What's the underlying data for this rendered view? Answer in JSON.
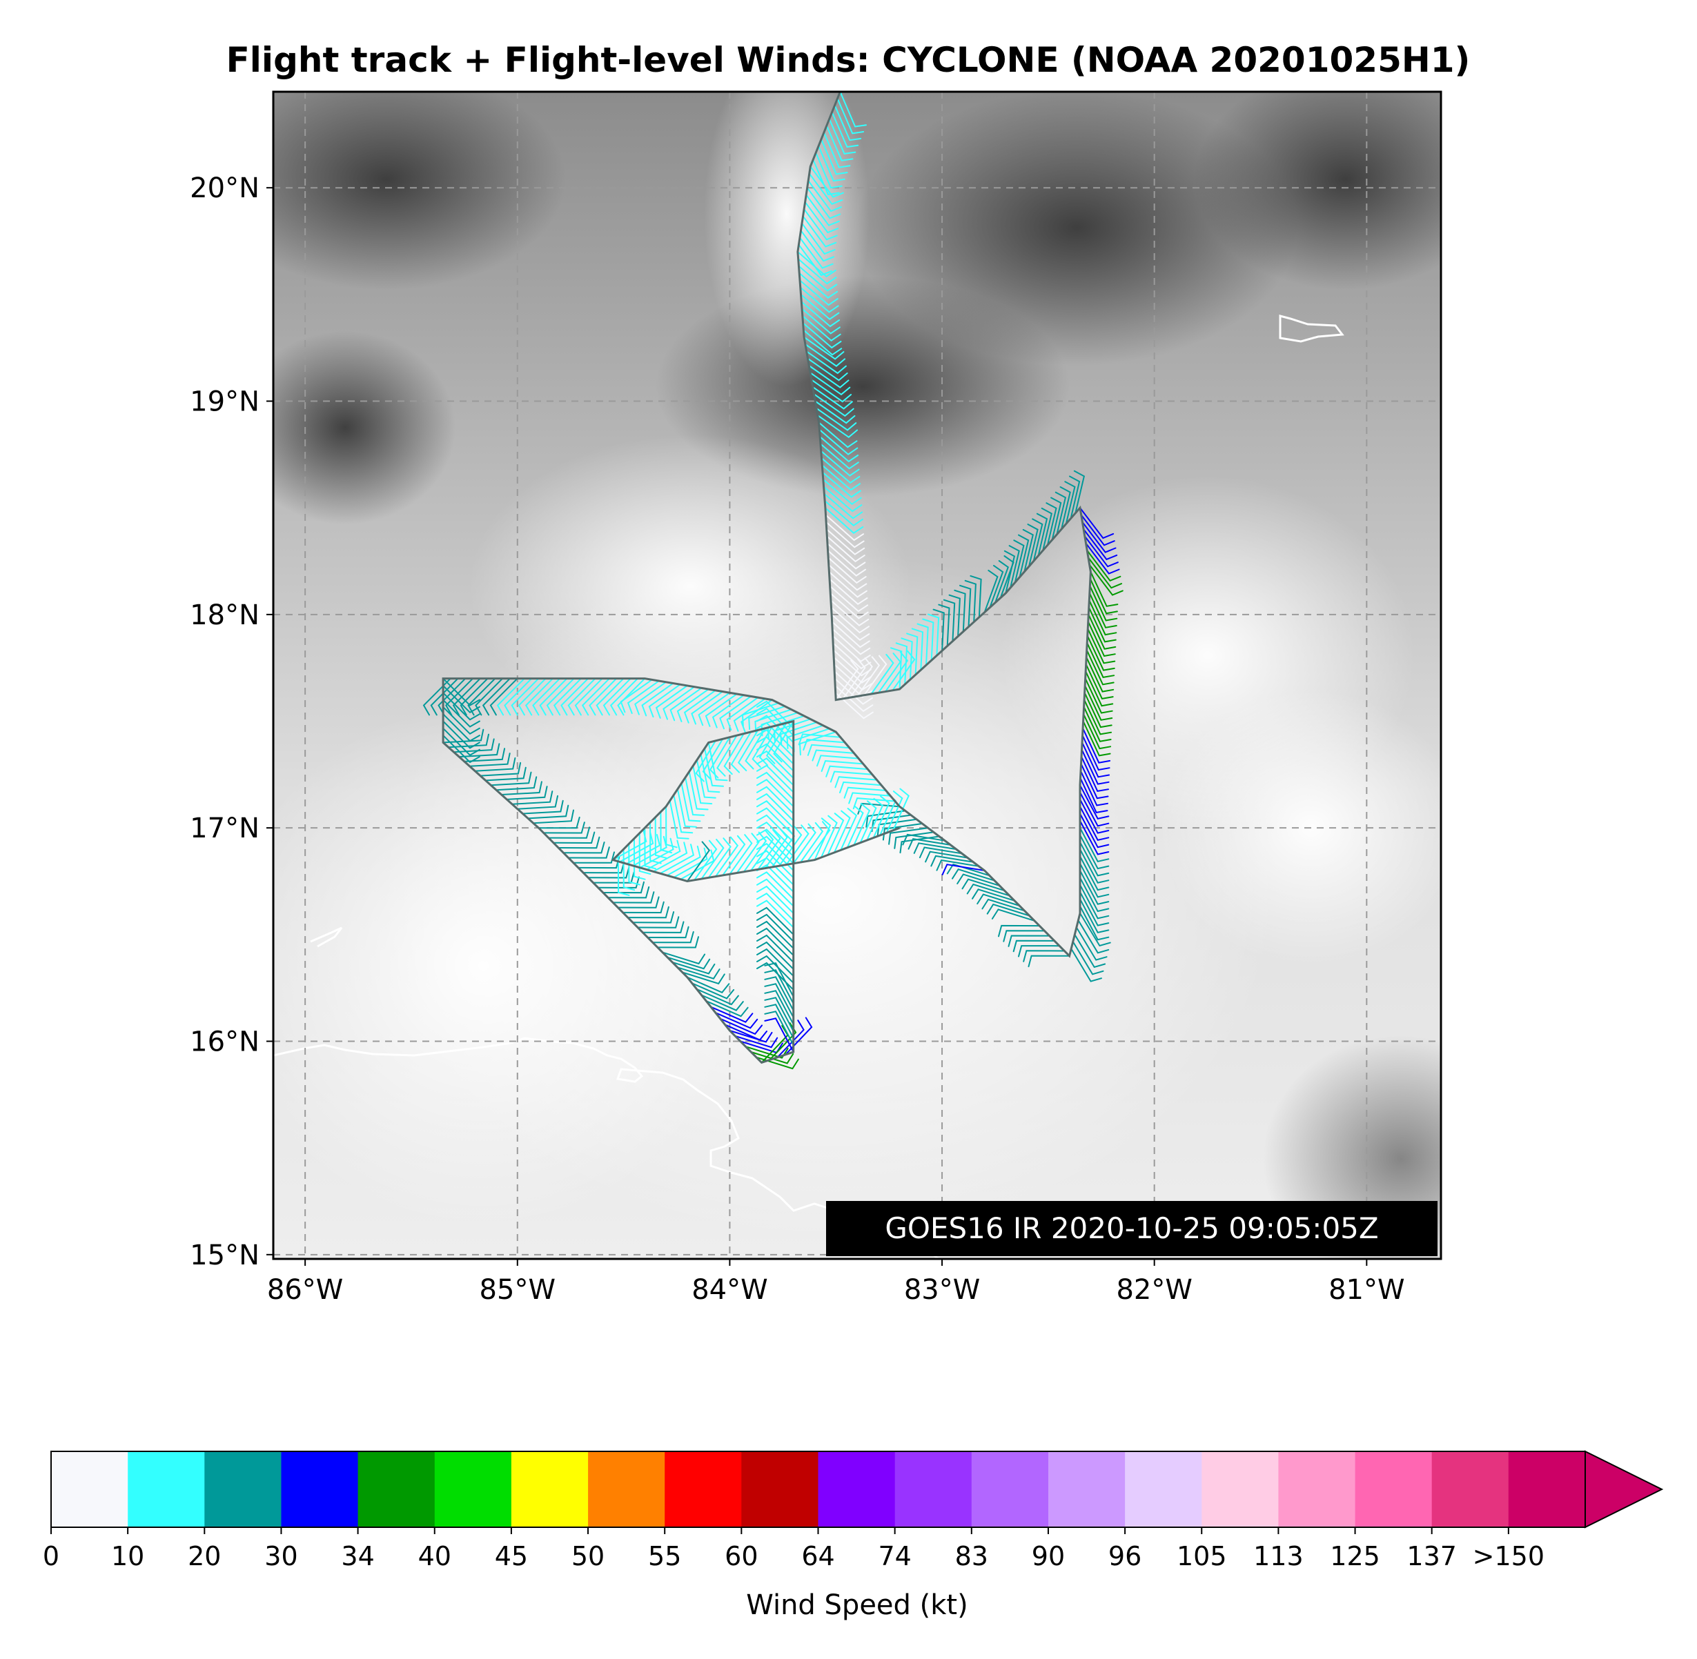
{
  "title": "Flight track + Flight-level Winds: CYCLONE (NOAA 20201025H1)",
  "map": {
    "lon_range": [
      -86.15,
      -80.65
    ],
    "lat_range": [
      14.98,
      20.45
    ],
    "lat_ticks": [
      {
        "value": 20,
        "label": "20°N"
      },
      {
        "value": 19,
        "label": "19°N"
      },
      {
        "value": 18,
        "label": "18°N"
      },
      {
        "value": 17,
        "label": "17°N"
      },
      {
        "value": 16,
        "label": "16°N"
      },
      {
        "value": 15,
        "label": "15°N"
      }
    ],
    "lon_ticks": [
      {
        "value": -86,
        "label": "86°W"
      },
      {
        "value": -85,
        "label": "85°W"
      },
      {
        "value": -84,
        "label": "84°W"
      },
      {
        "value": -83,
        "label": "83°W"
      },
      {
        "value": -82,
        "label": "82°W"
      },
      {
        "value": -81,
        "label": "81°W"
      }
    ],
    "gridlines": true,
    "background": "grayscale infrared satellite imagery",
    "satellite_stamp": "GOES16 IR 2020-10-25 09:05:05Z",
    "track_color": "#556b6b",
    "coastline_color": "#ffffff"
  },
  "flight_track": [
    {
      "lon": -83.48,
      "lat": 20.45,
      "kt": 15
    },
    {
      "lon": -83.62,
      "lat": 20.1,
      "kt": 15
    },
    {
      "lon": -83.68,
      "lat": 19.7,
      "kt": 10
    },
    {
      "lon": -83.65,
      "lat": 19.3,
      "kt": 15
    },
    {
      "lon": -83.58,
      "lat": 18.9,
      "kt": 15
    },
    {
      "lon": -83.55,
      "lat": 18.5,
      "kt": 10
    },
    {
      "lon": -83.52,
      "lat": 18.0,
      "kt": 8
    },
    {
      "lon": -83.5,
      "lat": 17.6,
      "kt": 5
    },
    {
      "lon": -83.2,
      "lat": 17.65,
      "kt": 15
    },
    {
      "lon": -82.7,
      "lat": 18.1,
      "kt": 28
    },
    {
      "lon": -82.35,
      "lat": 18.5,
      "kt": 30
    },
    {
      "lon": -82.3,
      "lat": 18.2,
      "kt": 36
    },
    {
      "lon": -82.32,
      "lat": 17.8,
      "kt": 36
    },
    {
      "lon": -82.35,
      "lat": 17.2,
      "kt": 32
    },
    {
      "lon": -82.35,
      "lat": 16.6,
      "kt": 25
    },
    {
      "lon": -82.4,
      "lat": 16.4,
      "kt": 22
    },
    {
      "lon": -82.8,
      "lat": 16.8,
      "kt": 30
    },
    {
      "lon": -83.2,
      "lat": 17.1,
      "kt": 20
    },
    {
      "lon": -83.5,
      "lat": 17.45,
      "kt": 10
    },
    {
      "lon": -83.8,
      "lat": 17.6,
      "kt": 10
    },
    {
      "lon": -84.4,
      "lat": 17.7,
      "kt": 15
    },
    {
      "lon": -85.0,
      "lat": 17.7,
      "kt": 20
    },
    {
      "lon": -85.35,
      "lat": 17.7,
      "kt": 20
    },
    {
      "lon": -85.35,
      "lat": 17.4,
      "kt": 20
    },
    {
      "lon": -84.9,
      "lat": 17.0,
      "kt": 20
    },
    {
      "lon": -84.55,
      "lat": 16.65,
      "kt": 20
    },
    {
      "lon": -84.2,
      "lat": 16.3,
      "kt": 28
    },
    {
      "lon": -84.0,
      "lat": 16.05,
      "kt": 32
    },
    {
      "lon": -83.85,
      "lat": 15.9,
      "kt": 36
    },
    {
      "lon": -83.7,
      "lat": 15.95,
      "kt": 30
    },
    {
      "lon": -83.7,
      "lat": 16.5,
      "kt": 20
    },
    {
      "lon": -83.7,
      "lat": 17.5,
      "kt": 10
    },
    {
      "lon": -84.1,
      "lat": 17.4,
      "kt": 15
    },
    {
      "lon": -84.3,
      "lat": 17.1,
      "kt": 15
    },
    {
      "lon": -84.55,
      "lat": 16.85,
      "kt": 15
    },
    {
      "lon": -84.2,
      "lat": 16.75,
      "kt": 20
    },
    {
      "lon": -83.6,
      "lat": 16.85,
      "kt": 15
    },
    {
      "lon": -83.2,
      "lat": 17.0,
      "kt": 20
    }
  ],
  "colorbar": {
    "label": "Wind Speed (kt)",
    "tick_labels": [
      "0",
      "10",
      "20",
      "30",
      "34",
      "40",
      "45",
      "50",
      "55",
      "60",
      "64",
      "74",
      "83",
      "90",
      "96",
      "105",
      "113",
      "125",
      "137",
      ">150"
    ],
    "colors": [
      "#f7f8fc",
      "#33ffff",
      "#009999",
      "#0000ff",
      "#009900",
      "#00dd00",
      "#ffff00",
      "#ff8000",
      "#ff0000",
      "#c00000",
      "#8000ff",
      "#9933ff",
      "#b266ff",
      "#cc99ff",
      "#e5ccff",
      "#ffcce5",
      "#ff99cc",
      "#ff66b2",
      "#e5337f",
      "#cc0066"
    ],
    "extend_color": "#cc0066"
  }
}
